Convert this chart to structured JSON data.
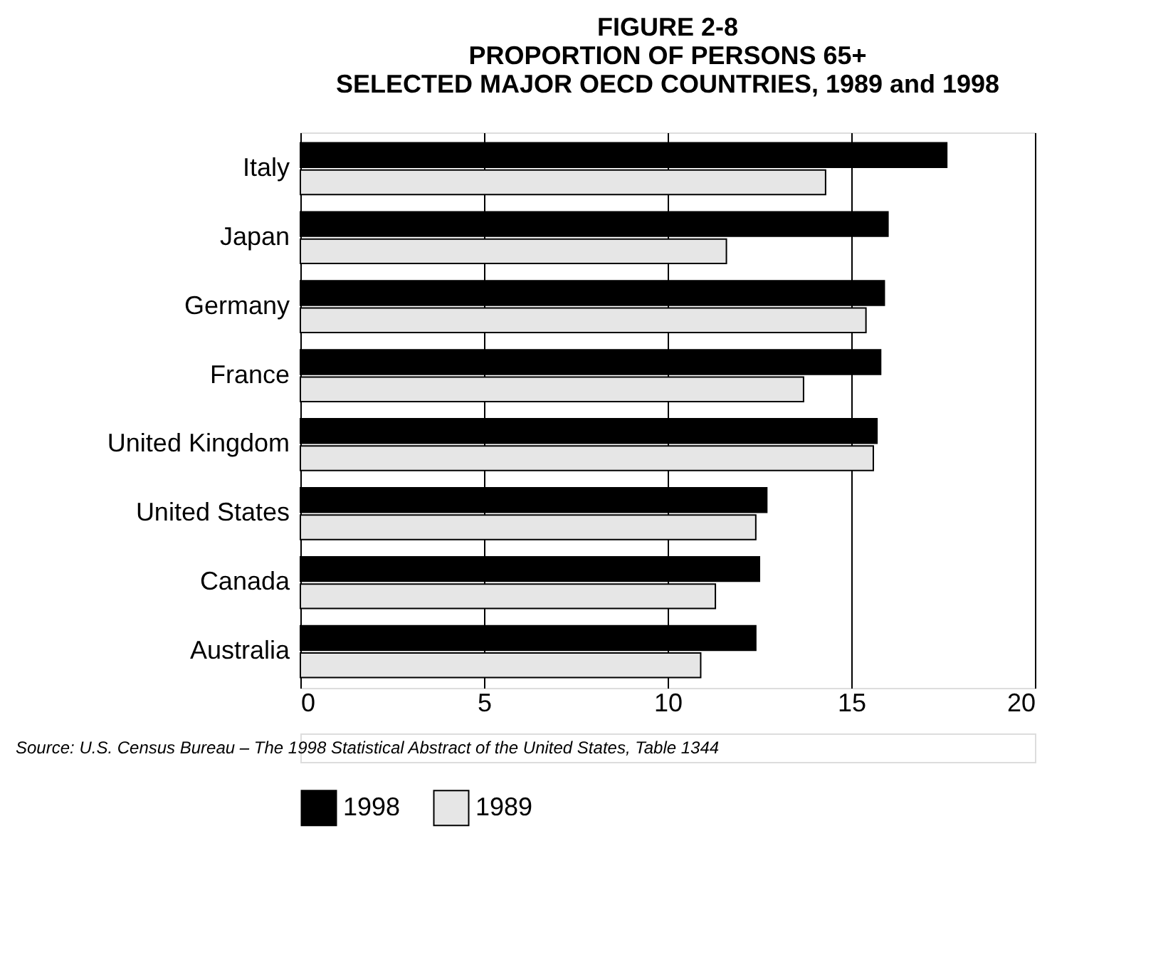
{
  "chart_data": {
    "type": "bar",
    "orientation": "horizontal",
    "title": "FIGURE 2-8\nPROPORTION OF PERSONS 65+\nSELECTED MAJOR OECD COUNTRIES, 1989 and 1998",
    "categories": [
      "Italy",
      "Japan",
      "Germany",
      "France",
      "United Kingdom",
      "United States",
      "Canada",
      "Australia"
    ],
    "series": [
      {
        "name": "1998",
        "color": "#000000",
        "values": [
          17.6,
          16.0,
          15.9,
          15.8,
          15.7,
          12.7,
          12.5,
          12.4
        ]
      },
      {
        "name": "1989",
        "color": "#e6e6e6",
        "values": [
          14.3,
          11.6,
          15.4,
          13.7,
          15.6,
          12.4,
          11.3,
          10.9
        ]
      }
    ],
    "xlim": [
      0,
      20
    ],
    "xticks": [
      0,
      5,
      10,
      15,
      20
    ],
    "grid": "x",
    "legend": "bottom",
    "annotations": [
      "Source:  U.S. Census Bureau  –  The 1998 Statistical Abstract of the United States, Table 1344"
    ]
  }
}
